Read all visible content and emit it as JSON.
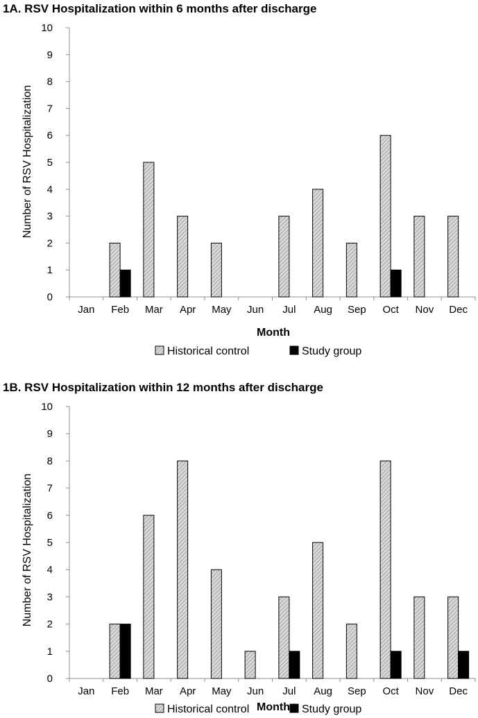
{
  "colors": {
    "historical": "#d9d9d9",
    "hatch": "#8c8c8c",
    "study": "#000000",
    "axis": "#8c8c8c"
  },
  "chart_data": [
    {
      "type": "bar",
      "title": "1A. RSV Hospitalization within 6 months after discharge",
      "xlabel": "Month",
      "ylabel": "Number of RSV Hospitalization",
      "ylim": [
        0,
        10
      ],
      "yticks": [
        "0",
        "1",
        "2",
        "3",
        "4",
        "5",
        "6",
        "7",
        "8",
        "9",
        "10"
      ],
      "categories": [
        "Jan",
        "Feb",
        "Mar",
        "Apr",
        "May",
        "Jun",
        "Jul",
        "Aug",
        "Sep",
        "Oct",
        "Nov",
        "Dec"
      ],
      "series": [
        {
          "name": "Historical control",
          "values": [
            0,
            2,
            5,
            3,
            2,
            0,
            3,
            4,
            2,
            6,
            3,
            3
          ]
        },
        {
          "name": "Study group",
          "values": [
            0,
            1,
            0,
            0,
            0,
            0,
            0,
            0,
            0,
            1,
            0,
            0
          ]
        }
      ],
      "legend": "bottom"
    },
    {
      "type": "bar",
      "title": "1B. RSV Hospitalization within 12 months after discharge",
      "xlabel": "Month",
      "ylabel": "Number of RSV Hospitalization",
      "ylim": [
        0,
        10
      ],
      "yticks": [
        "0",
        "1",
        "2",
        "3",
        "4",
        "5",
        "6",
        "7",
        "8",
        "9",
        "10"
      ],
      "categories": [
        "Jan",
        "Feb",
        "Mar",
        "Apr",
        "May",
        "Jun",
        "Jul",
        "Aug",
        "Sep",
        "Oct",
        "Nov",
        "Dec"
      ],
      "series": [
        {
          "name": "Historical control",
          "values": [
            0,
            2,
            6,
            8,
            4,
            1,
            3,
            5,
            2,
            8,
            3,
            3
          ]
        },
        {
          "name": "Study group",
          "values": [
            0,
            2,
            0,
            0,
            0,
            0,
            1,
            0,
            0,
            1,
            0,
            1
          ]
        }
      ],
      "legend": "bottom"
    }
  ]
}
